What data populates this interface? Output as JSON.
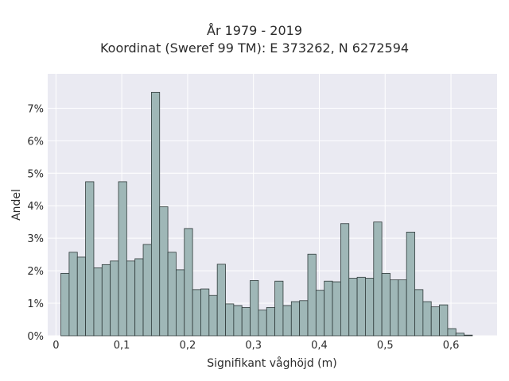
{
  "chart_data": {
    "type": "bar",
    "title": "År 1979 - 2019",
    "subtitle": "Koordinat (Sweref 99 TM): E 373262, N 6272594",
    "xlabel": "Signifikant våghöjd (m)",
    "ylabel": "Andel",
    "xlim": [
      -0.0125,
      0.67
    ],
    "ylim": [
      0,
      0.0806
    ],
    "x_ticks": [
      0,
      0.1,
      0.2,
      0.3,
      0.4,
      0.5,
      0.6
    ],
    "x_tick_labels": [
      "0",
      "0,1",
      "0,2",
      "0,3",
      "0,4",
      "0,5",
      "0,6"
    ],
    "y_ticks": [
      0,
      0.01,
      0.02,
      0.03,
      0.04,
      0.05,
      0.06,
      0.07
    ],
    "y_tick_labels": [
      "0%",
      "1%",
      "2%",
      "3%",
      "4%",
      "5%",
      "6%",
      "7%"
    ],
    "bin_start": 0.0075,
    "bin_width": 0.0125,
    "values": [
      0.0192,
      0.0257,
      0.0242,
      0.0474,
      0.0209,
      0.0219,
      0.023,
      0.0474,
      0.023,
      0.0237,
      0.0281,
      0.0749,
      0.0397,
      0.0257,
      0.0203,
      0.033,
      0.0142,
      0.0144,
      0.0124,
      0.022,
      0.0098,
      0.0093,
      0.0087,
      0.017,
      0.0079,
      0.0087,
      0.0168,
      0.0093,
      0.0105,
      0.0108,
      0.0251,
      0.014,
      0.0168,
      0.0166,
      0.0345,
      0.0177,
      0.018,
      0.0177,
      0.035,
      0.0192,
      0.0172,
      0.0172,
      0.0319,
      0.0142,
      0.0105,
      0.0089,
      0.0095,
      0.0022,
      0.0008,
      0.0002
    ],
    "grid": true,
    "colors": {
      "bar_fill": "#9fb7b7",
      "bar_edge": "#2f3a3a",
      "plot_background": "#eaeaf2",
      "grid": "#ffffff"
    }
  }
}
